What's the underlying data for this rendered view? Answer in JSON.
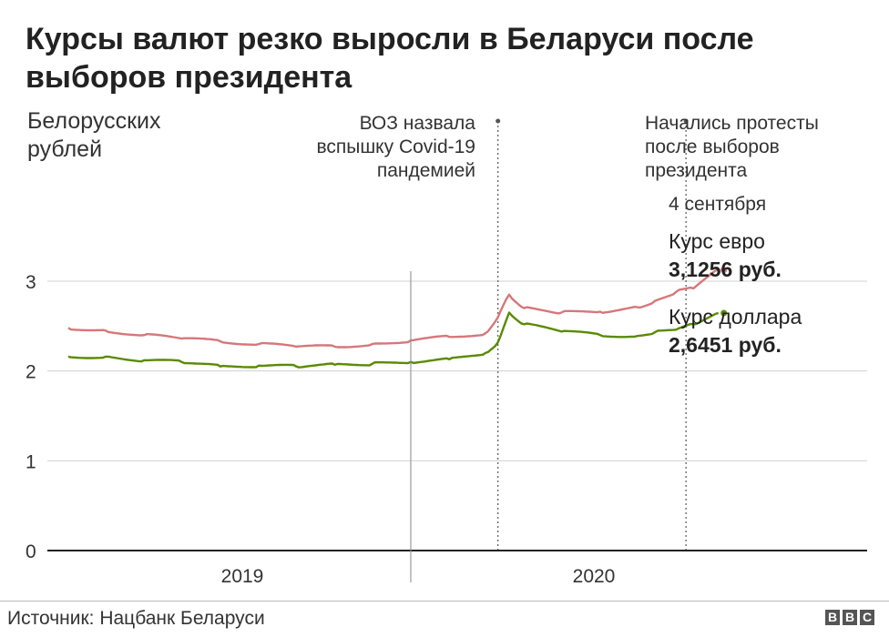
{
  "title_lines": [
    "Курсы валют резко выросли в Беларуси после",
    "выборов президента"
  ],
  "ylabel_lines": [
    "Белорусских",
    "рублей"
  ],
  "annotations": {
    "who": [
      "ВОЗ назвала",
      "вспышку Covid-19",
      "пандемией"
    ],
    "protests": [
      "Начались протесты",
      "после выборов",
      "президента"
    ]
  },
  "end_labels": {
    "date": "4 сентября",
    "euro_name": "Курс евро",
    "euro_value": "3,1256 руб.",
    "usd_name": "Курс доллара",
    "usd_value": "2,6451 руб."
  },
  "source": "Источник: Нацбанк Беларуси",
  "logo": [
    "B",
    "B",
    "C"
  ],
  "chart_data": {
    "type": "line",
    "x_unit": "date",
    "x_categories": [
      "2019",
      "2020"
    ],
    "x_range": [
      "2019-04-01",
      "2020-12-31"
    ],
    "y_ticks": [
      "0",
      "1",
      "2",
      "3"
    ],
    "ylim": [
      0,
      3.1
    ],
    "grid": true,
    "events": [
      {
        "date": "2020-03-11",
        "label": "ВОЗ назвала вспышку Covid-19 пандемией"
      },
      {
        "date": "2020-08-09",
        "label": "Начались протесты после выборов президента"
      }
    ],
    "series": [
      {
        "name": "Курс евро",
        "color": "#d6777a",
        "x": [
          "2019-04-01",
          "2019-05-01",
          "2019-06-01",
          "2019-07-01",
          "2019-08-01",
          "2019-09-01",
          "2019-10-01",
          "2019-11-01",
          "2019-12-01",
          "2020-01-01",
          "2020-02-01",
          "2020-03-01",
          "2020-03-11",
          "2020-03-20",
          "2020-04-01",
          "2020-05-01",
          "2020-06-01",
          "2020-07-01",
          "2020-07-15",
          "2020-08-01",
          "2020-08-15",
          "2020-09-04"
        ],
        "y": [
          2.48,
          2.45,
          2.4,
          2.36,
          2.33,
          2.3,
          2.27,
          2.27,
          2.3,
          2.34,
          2.38,
          2.42,
          2.6,
          2.85,
          2.7,
          2.65,
          2.66,
          2.71,
          2.78,
          2.88,
          2.92,
          3.1256
        ]
      },
      {
        "name": "Курс доллара",
        "color": "#5a8a00",
        "x": [
          "2019-04-01",
          "2019-05-01",
          "2019-06-01",
          "2019-07-01",
          "2019-08-01",
          "2019-09-01",
          "2019-10-01",
          "2019-11-01",
          "2019-12-01",
          "2020-01-01",
          "2020-02-01",
          "2020-03-01",
          "2020-03-11",
          "2020-03-20",
          "2020-04-01",
          "2020-05-01",
          "2020-06-01",
          "2020-07-01",
          "2020-07-15",
          "2020-08-01",
          "2020-08-15",
          "2020-09-04"
        ],
        "y": [
          2.16,
          2.16,
          2.12,
          2.1,
          2.05,
          2.06,
          2.05,
          2.07,
          2.08,
          2.1,
          2.13,
          2.2,
          2.32,
          2.65,
          2.52,
          2.44,
          2.4,
          2.39,
          2.43,
          2.46,
          2.52,
          2.6451
        ]
      }
    ]
  }
}
